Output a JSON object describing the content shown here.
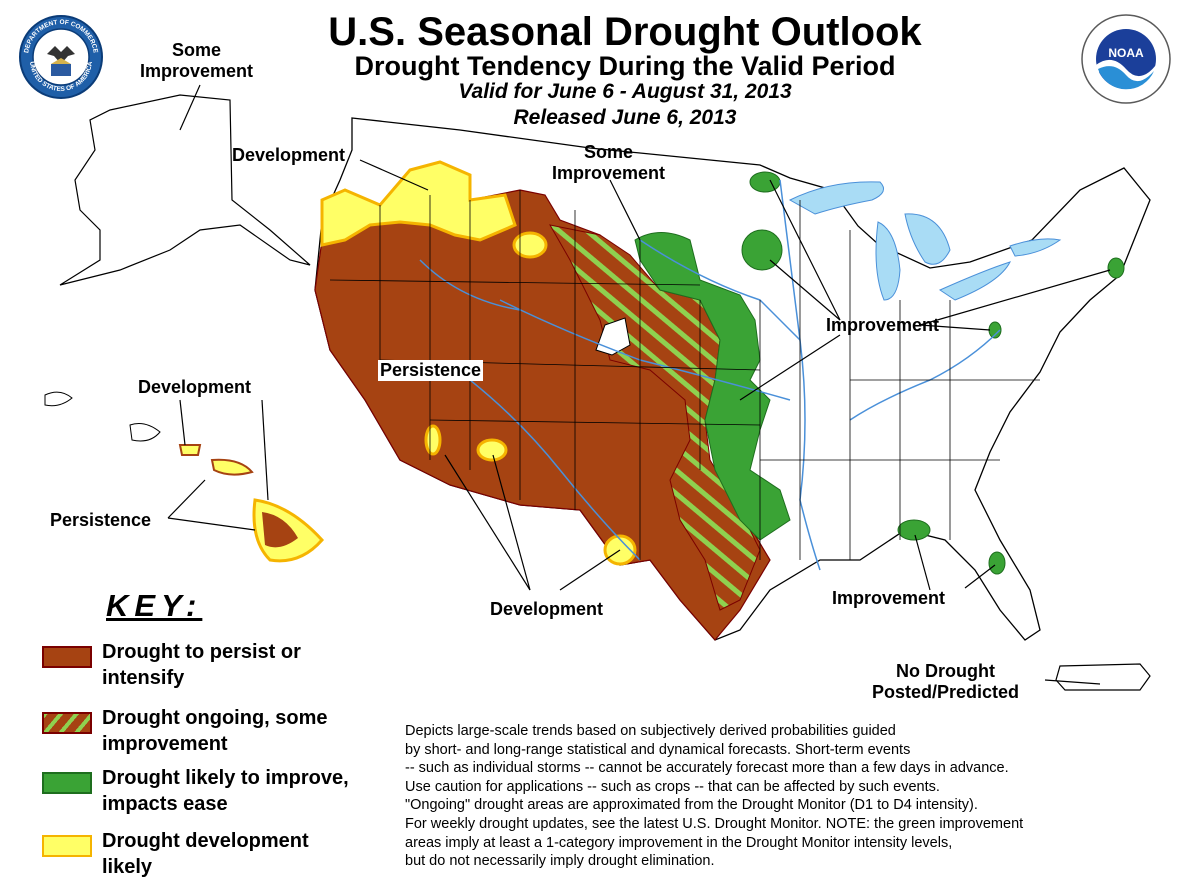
{
  "header": {
    "title": "U.S. Seasonal Drought Outlook",
    "subtitle": "Drought Tendency During the Valid Period",
    "valid": "Valid for June 6 - August 31, 2013",
    "released": "Released June 6, 2013"
  },
  "logos": {
    "left": "DEPARTMENT OF COMMERCE",
    "left_bottom": "UNITED STATES OF AMERICA",
    "right": "NOAA"
  },
  "labels": {
    "alaska_improvement": [
      "Some",
      "Improvement"
    ],
    "nw_development": "Development",
    "plains_some_improvement": [
      "Some",
      "Improvement"
    ],
    "persistence_west": "Persistence",
    "improvement_midwest": "Improvement",
    "hawaii_development": "Development",
    "hawaii_persistence": "Persistence",
    "sw_development": "Development",
    "improvement_south": "Improvement",
    "no_drought": [
      "No Drought",
      "Posted/Predicted"
    ]
  },
  "key": {
    "title": "KEY:",
    "items": [
      {
        "lines": [
          "Drought to persist or",
          "intensify"
        ],
        "color": "#a64312"
      },
      {
        "lines": [
          "Drought ongoing, some",
          "improvement"
        ],
        "color": "#a64312",
        "stripe": "#8fd14f"
      },
      {
        "lines": [
          "Drought likely to improve,",
          "impacts ease"
        ],
        "color": "#3aa335"
      },
      {
        "lines": [
          "Drought development",
          "likely"
        ],
        "color": "#ffff66"
      }
    ]
  },
  "description": [
    "Depicts large-scale trends based on subjectively derived probabilities guided",
    "by short- and long-range statistical and dynamical forecasts. Short-term events",
    "-- such as individual storms -- cannot be accurately forecast more than a few days in advance.",
    "Use caution for applications -- such as crops -- that can be affected by such events.",
    "\"Ongoing\" drought areas are approximated from the Drought Monitor (D1 to D4 intensity).",
    "For weekly drought updates, see the latest U.S. Drought Monitor. NOTE: the green improvement",
    "areas imply at least a 1-category improvement in the Drought Monitor intensity levels,",
    "but do not necessarily imply drought elimination."
  ],
  "colors": {
    "persist": "#a64312",
    "improve": "#3aa335",
    "develop": "#ffff66",
    "develop_edge": "#f5b400",
    "water": "#a9dcf5",
    "river": "#4a90d9"
  }
}
